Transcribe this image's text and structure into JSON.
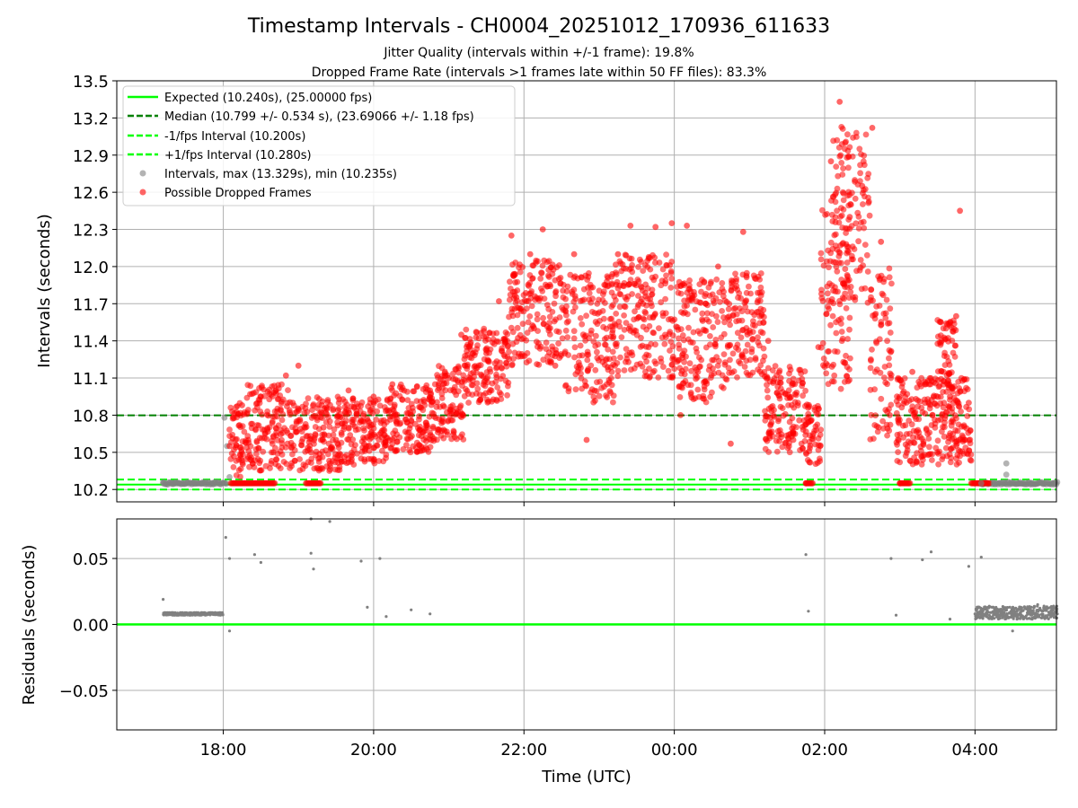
{
  "figure": {
    "title": "Timestamp Intervals - CH0004_20251012_170936_611633",
    "subtitle_1": "Jitter Quality (intervals within +/-1 frame): 19.8%",
    "subtitle_2": "Dropped Frame Rate (intervals >1 frames late within 50 FF files): 83.3%"
  },
  "colors": {
    "expected": "#00ff00",
    "median": "#008000",
    "bounds": "#00ff00",
    "intervals": "#808080",
    "dropped": "#ff0000",
    "residuals": "#808080",
    "grid": "#b0b0b0"
  },
  "chart_data": [
    {
      "type": "scatter",
      "name": "intervals-panel",
      "ylabel": "Intervals (seconds)",
      "xlabel": "",
      "ylim": [
        10.1,
        13.5
      ],
      "yticks": [
        10.2,
        10.5,
        10.8,
        11.1,
        11.4,
        11.7,
        12.0,
        12.3,
        12.6,
        12.9,
        13.2,
        13.5
      ],
      "ytick_labels": [
        "10.2",
        "10.5",
        "10.8",
        "11.1",
        "11.4",
        "11.7",
        "12.0",
        "12.3",
        "12.6",
        "12.9",
        "13.2",
        "13.5"
      ],
      "xlim": [
        "2025-10-12 16:35",
        "2025-10-13 05:05"
      ],
      "xticks": [
        "2025-10-12 18:00",
        "2025-10-12 20:00",
        "2025-10-12 22:00",
        "2025-10-13 00:00",
        "2025-10-13 02:00",
        "2025-10-13 04:00"
      ],
      "grid": true,
      "legend_position": "upper-left",
      "lines": [
        {
          "name": "Expected (10.240s), (25.00000 fps)",
          "y": 10.24,
          "style": "solid",
          "color": "#00ff00"
        },
        {
          "name": "Median (10.799 +/- 0.534 s), (23.69066 +/- 1.18 fps)",
          "y": 10.799,
          "style": "dashed",
          "color": "#008000"
        },
        {
          "name": "-1/fps Interval (10.200s)",
          "y": 10.2,
          "style": "dashed",
          "color": "#00ff00"
        },
        {
          "name": "+1/fps Interval (10.280s)",
          "y": 10.28,
          "style": "dashed",
          "color": "#00ff00"
        }
      ],
      "series": [
        {
          "name": "Intervals, max (13.329s), min (10.235s)",
          "color": "#808080",
          "points": [
            {
              "x": "2025-10-12 17:12",
              "y": 10.25
            },
            {
              "x": "2025-10-12 17:20",
              "y": 10.25
            },
            {
              "x": "2025-10-12 17:28",
              "y": 10.25
            },
            {
              "x": "2025-10-12 17:36",
              "y": 10.25
            },
            {
              "x": "2025-10-12 17:44",
              "y": 10.25
            },
            {
              "x": "2025-10-12 17:52",
              "y": 10.25
            },
            {
              "x": "2025-10-12 18:01",
              "y": 10.78
            },
            {
              "x": "2025-10-12 18:03",
              "y": 10.55
            },
            {
              "x": "2025-10-12 18:05",
              "y": 10.3
            },
            {
              "x": "2025-10-13 04:05",
              "y": 10.25
            },
            {
              "x": "2025-10-13 04:15",
              "y": 10.25
            },
            {
              "x": "2025-10-13 04:25",
              "y": 10.41
            },
            {
              "x": "2025-10-13 04:25",
              "y": 10.32
            },
            {
              "x": "2025-10-13 04:35",
              "y": 10.25
            },
            {
              "x": "2025-10-13 04:45",
              "y": 10.25
            },
            {
              "x": "2025-10-13 04:55",
              "y": 10.25
            },
            {
              "x": "2025-10-13 05:03",
              "y": 10.25
            }
          ]
        },
        {
          "name": "Possible Dropped Frames",
          "color": "#ff0000",
          "points": [
            {
              "x": "2025-10-12 18:05",
              "y": 10.55
            },
            {
              "x": "2025-10-12 18:15",
              "y": 10.88
            },
            {
              "x": "2025-10-12 18:20",
              "y": 10.6
            },
            {
              "x": "2025-10-12 18:30",
              "y": 10.95
            },
            {
              "x": "2025-10-12 18:40",
              "y": 10.5
            },
            {
              "x": "2025-10-12 18:50",
              "y": 11.12
            },
            {
              "x": "2025-10-12 19:00",
              "y": 11.2
            },
            {
              "x": "2025-10-12 19:10",
              "y": 10.5
            },
            {
              "x": "2025-10-12 19:20",
              "y": 10.7
            },
            {
              "x": "2025-10-12 19:30",
              "y": 10.6
            },
            {
              "x": "2025-10-12 19:40",
              "y": 11.0
            },
            {
              "x": "2025-10-12 19:50",
              "y": 10.45
            },
            {
              "x": "2025-10-12 20:00",
              "y": 10.95
            },
            {
              "x": "2025-10-12 20:15",
              "y": 11.05
            },
            {
              "x": "2025-10-12 20:30",
              "y": 10.8
            },
            {
              "x": "2025-10-12 20:45",
              "y": 11.0
            },
            {
              "x": "2025-10-12 21:00",
              "y": 11.1
            },
            {
              "x": "2025-10-12 21:10",
              "y": 11.45
            },
            {
              "x": "2025-10-12 21:30",
              "y": 11.3
            },
            {
              "x": "2025-10-12 21:40",
              "y": 11.72
            },
            {
              "x": "2025-10-12 21:50",
              "y": 12.25
            },
            {
              "x": "2025-10-12 22:05",
              "y": 12.1
            },
            {
              "x": "2025-10-12 22:15",
              "y": 12.3
            },
            {
              "x": "2025-10-12 22:25",
              "y": 11.2
            },
            {
              "x": "2025-10-12 22:40",
              "y": 12.1
            },
            {
              "x": "2025-10-12 22:50",
              "y": 10.6
            },
            {
              "x": "2025-10-12 23:05",
              "y": 11.85
            },
            {
              "x": "2025-10-12 23:15",
              "y": 12.1
            },
            {
              "x": "2025-10-12 23:25",
              "y": 12.33
            },
            {
              "x": "2025-10-12 23:35",
              "y": 11.7
            },
            {
              "x": "2025-10-12 23:45",
              "y": 12.32
            },
            {
              "x": "2025-10-12 23:58",
              "y": 12.35
            },
            {
              "x": "2025-10-13 00:05",
              "y": 10.8
            },
            {
              "x": "2025-10-13 00:10",
              "y": 12.33
            },
            {
              "x": "2025-10-13 00:25",
              "y": 11.7
            },
            {
              "x": "2025-10-13 00:35",
              "y": 12.0
            },
            {
              "x": "2025-10-13 00:45",
              "y": 10.57
            },
            {
              "x": "2025-10-13 00:55",
              "y": 12.28
            },
            {
              "x": "2025-10-13 01:05",
              "y": 11.9
            },
            {
              "x": "2025-10-13 01:15",
              "y": 11.4
            },
            {
              "x": "2025-10-13 01:25",
              "y": 11.1
            },
            {
              "x": "2025-10-13 01:35",
              "y": 10.6
            },
            {
              "x": "2025-10-13 01:45",
              "y": 10.25
            },
            {
              "x": "2025-10-13 01:55",
              "y": 11.35
            },
            {
              "x": "2025-10-13 02:05",
              "y": 12.85
            },
            {
              "x": "2025-10-13 02:12",
              "y": 13.33
            },
            {
              "x": "2025-10-13 02:20",
              "y": 12.4
            },
            {
              "x": "2025-10-13 02:30",
              "y": 12.65
            },
            {
              "x": "2025-10-13 02:38",
              "y": 13.12
            },
            {
              "x": "2025-10-13 02:45",
              "y": 12.2
            },
            {
              "x": "2025-10-13 02:52",
              "y": 10.8
            },
            {
              "x": "2025-10-13 03:00",
              "y": 10.25
            },
            {
              "x": "2025-10-13 03:10",
              "y": 11.15
            },
            {
              "x": "2025-10-13 03:20",
              "y": 10.9
            },
            {
              "x": "2025-10-13 03:30",
              "y": 10.5
            },
            {
              "x": "2025-10-13 03:40",
              "y": 10.95
            },
            {
              "x": "2025-10-13 03:45",
              "y": 11.6
            },
            {
              "x": "2025-10-13 03:48",
              "y": 12.45
            },
            {
              "x": "2025-10-13 03:55",
              "y": 10.9
            },
            {
              "x": "2025-10-13 04:00",
              "y": 10.25
            }
          ]
        }
      ]
    },
    {
      "type": "scatter",
      "name": "residuals-panel",
      "ylabel": "Residuals (seconds)",
      "xlabel": "Time (UTC)",
      "ylim": [
        -0.08,
        0.08
      ],
      "yticks": [
        -0.05,
        0.0,
        0.05
      ],
      "ytick_labels": [
        "−0.05",
        "0.00",
        "0.05"
      ],
      "xlim": [
        "2025-10-12 16:35",
        "2025-10-13 05:05"
      ],
      "xticks": [
        "2025-10-12 18:00",
        "2025-10-12 20:00",
        "2025-10-12 22:00",
        "2025-10-13 00:00",
        "2025-10-13 02:00",
        "2025-10-13 04:00"
      ],
      "xtick_labels": [
        "18:00",
        "20:00",
        "22:00",
        "00:00",
        "02:00",
        "04:00"
      ],
      "grid": true,
      "zero_line_color": "#00ff00",
      "series": [
        {
          "name": "",
          "color": "#808080",
          "points": [
            {
              "x": "2025-10-12 17:12",
              "y": 0.019
            },
            {
              "x": "2025-10-12 17:20",
              "y": 0.008
            },
            {
              "x": "2025-10-12 17:30",
              "y": 0.008
            },
            {
              "x": "2025-10-12 17:40",
              "y": 0.008
            },
            {
              "x": "2025-10-12 17:50",
              "y": 0.008
            },
            {
              "x": "2025-10-12 18:02",
              "y": 0.066
            },
            {
              "x": "2025-10-12 18:05",
              "y": 0.05
            },
            {
              "x": "2025-10-12 18:05",
              "y": -0.005
            },
            {
              "x": "2025-10-12 18:25",
              "y": 0.053
            },
            {
              "x": "2025-10-12 18:30",
              "y": 0.047
            },
            {
              "x": "2025-10-12 19:10",
              "y": 0.054
            },
            {
              "x": "2025-10-12 19:12",
              "y": 0.042
            },
            {
              "x": "2025-10-12 19:10",
              "y": 0.08
            },
            {
              "x": "2025-10-12 19:25",
              "y": 0.078
            },
            {
              "x": "2025-10-12 19:50",
              "y": 0.048
            },
            {
              "x": "2025-10-12 20:05",
              "y": 0.05
            },
            {
              "x": "2025-10-12 19:55",
              "y": 0.013
            },
            {
              "x": "2025-10-12 20:10",
              "y": 0.006
            },
            {
              "x": "2025-10-12 20:30",
              "y": 0.011
            },
            {
              "x": "2025-10-12 20:45",
              "y": 0.008
            },
            {
              "x": "2025-10-13 01:45",
              "y": 0.053
            },
            {
              "x": "2025-10-13 01:47",
              "y": 0.01
            },
            {
              "x": "2025-10-13 02:53",
              "y": 0.05
            },
            {
              "x": "2025-10-13 02:57",
              "y": 0.007
            },
            {
              "x": "2025-10-13 03:18",
              "y": 0.049
            },
            {
              "x": "2025-10-13 03:25",
              "y": 0.055
            },
            {
              "x": "2025-10-13 03:40",
              "y": 0.004
            },
            {
              "x": "2025-10-13 03:55",
              "y": 0.044
            },
            {
              "x": "2025-10-13 04:05",
              "y": 0.051
            },
            {
              "x": "2025-10-13 04:00",
              "y": 0.008
            },
            {
              "x": "2025-10-13 04:20",
              "y": 0.01
            },
            {
              "x": "2025-10-13 04:40",
              "y": 0.012
            },
            {
              "x": "2025-10-13 04:50",
              "y": 0.015
            },
            {
              "x": "2025-10-13 04:30",
              "y": -0.005
            },
            {
              "x": "2025-10-13 05:00",
              "y": 0.008
            }
          ]
        }
      ]
    }
  ]
}
